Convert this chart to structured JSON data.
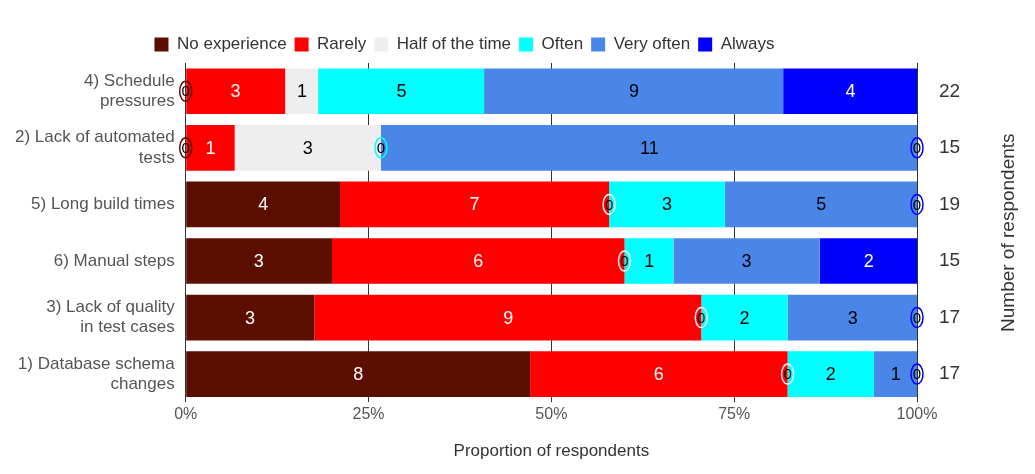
{
  "chart_data": {
    "type": "bar",
    "orientation": "horizontal",
    "stacked": true,
    "xlabel": "Proportion of respondents",
    "y2label": "Number of respondents",
    "categories": [
      "4) Schedule pressures",
      "2) Lack of automated tests",
      "5) Long build times",
      "6) Manual steps",
      "3) Lack of quality in test cases",
      "1) Database schema changes"
    ],
    "series": [
      {
        "name": "No experience",
        "color": "#5c0f00",
        "values": [
          0,
          0,
          21.1,
          20,
          17.6,
          47.1
        ]
      },
      {
        "name": "Rarely",
        "color": "#ff0000",
        "values": [
          13.6,
          6.7,
          36.8,
          40,
          52.9,
          35.2
        ]
      },
      {
        "name": "Half of the time",
        "color": "#eeeeee",
        "values": [
          4.5,
          20,
          0,
          0,
          0,
          0
        ]
      },
      {
        "name": "Often",
        "color": "#00ffff",
        "values": [
          22.7,
          0,
          15.8,
          6.7,
          11.8,
          11.8
        ]
      },
      {
        "name": "Very often",
        "color": "#4a86e8",
        "values": [
          40.9,
          73.3,
          26.3,
          20,
          17.7,
          5.9
        ]
      },
      {
        "name": "Always",
        "color": "#0000ff",
        "values": [
          18.3,
          0,
          0,
          13.3,
          0,
          0
        ]
      }
    ],
    "annotations": [
      {
        "text": "0",
        "x": 0,
        "y": "4) Schedule pressures"
      },
      {
        "text": "3",
        "x": 6.8,
        "y": "4) Schedule pressures"
      },
      {
        "text": "1",
        "x": 15.9,
        "y": "4) Schedule pressures"
      },
      {
        "text": "5",
        "x": 29.5,
        "y": "4) Schedule pressures"
      },
      {
        "text": "9",
        "x": 61.3,
        "y": "4) Schedule pressures"
      },
      {
        "text": "4",
        "x": 90.9,
        "y": "4) Schedule pressures"
      },
      {
        "text": "0",
        "x": 0,
        "y": "2) Lack of automated tests"
      },
      {
        "text": "1",
        "x": 3.4,
        "y": "2) Lack of automated tests"
      },
      {
        "text": "3",
        "x": 16.7,
        "y": "2) Lack of automated tests"
      },
      {
        "text": "0",
        "x": 26.7,
        "y": "2) Lack of automated tests"
      },
      {
        "text": "11",
        "x": 63.4,
        "y": "2) Lack of automated tests"
      },
      {
        "text": "0",
        "x": 100,
        "y": "2) Lack of automated tests"
      },
      {
        "text": "4",
        "x": 10.6,
        "y": "5) Long build times"
      },
      {
        "text": "7",
        "x": 39.5,
        "y": "5) Long build times"
      },
      {
        "text": "0",
        "x": 57.9,
        "y": "5) Long build times"
      },
      {
        "text": "3",
        "x": 65.8,
        "y": "5) Long build times"
      },
      {
        "text": "5",
        "x": 86.9,
        "y": "5) Long build times"
      },
      {
        "text": "0",
        "x": 100,
        "y": "5) Long build times"
      },
      {
        "text": "3",
        "x": 10,
        "y": "6) Manual steps"
      },
      {
        "text": "6",
        "x": 40,
        "y": "6) Manual steps"
      },
      {
        "text": "0",
        "x": 60,
        "y": "6) Manual steps"
      },
      {
        "text": "1",
        "x": 63.4,
        "y": "6) Manual steps"
      },
      {
        "text": "3",
        "x": 76.7,
        "y": "6) Manual steps"
      },
      {
        "text": "2",
        "x": 93.4,
        "y": "6) Manual steps"
      },
      {
        "text": "3",
        "x": 8.8,
        "y": "3) Lack of quality in test cases"
      },
      {
        "text": "9",
        "x": 44.1,
        "y": "3) Lack of quality in test cases"
      },
      {
        "text": "0",
        "x": 70.5,
        "y": "3) Lack of quality in test cases"
      },
      {
        "text": "2",
        "x": 76.4,
        "y": "3) Lack of quality in test cases"
      },
      {
        "text": "3",
        "x": 91.2,
        "y": "3) Lack of quality in test cases"
      },
      {
        "text": "0",
        "x": 100,
        "y": "3) Lack of quality in test cases"
      },
      {
        "text": "8",
        "x": 23.6,
        "y": "1) Database schema changes"
      },
      {
        "text": "6",
        "x": 64.7,
        "y": "1) Database schema changes"
      },
      {
        "text": "0",
        "x": 82.3,
        "y": "1) Database schema changes"
      },
      {
        "text": "2",
        "x": 88.2,
        "y": "1) Database schema changes"
      },
      {
        "text": "1",
        "x": 97.1,
        "y": "1) Database schema changes"
      },
      {
        "text": "0",
        "x": 100,
        "y": "1) Database schema changes"
      },
      "22",
      "15",
      "19",
      "15",
      "17",
      "17"
    ],
    "xlim": [
      0,
      100
    ],
    "xticks": [
      {
        "value": 0,
        "label": "0%"
      },
      {
        "value": 25,
        "label": "25%"
      },
      {
        "value": 50,
        "label": "50%"
      },
      {
        "value": 75,
        "label": "75%"
      },
      {
        "value": 100,
        "label": "100%"
      }
    ],
    "grid": "x",
    "legend": "top"
  }
}
